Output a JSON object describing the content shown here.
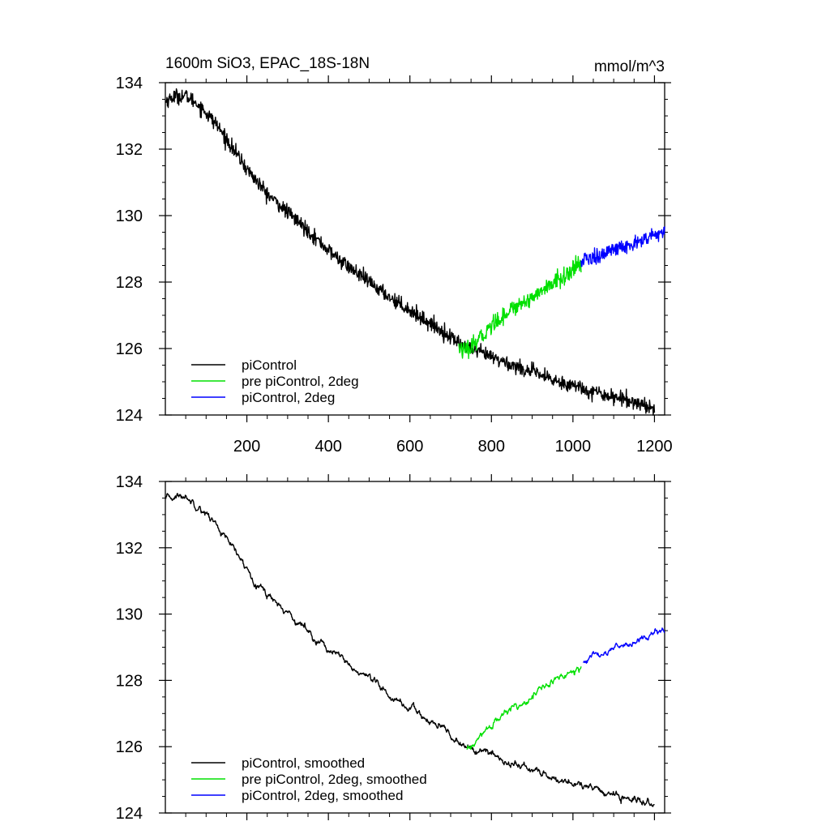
{
  "figure": {
    "title": "1600m SiO3, EPAC_18S-18N",
    "units": "mmol/m^3"
  },
  "chart_data": [
    {
      "type": "line",
      "title": "1600m SiO3, EPAC_18S-18N",
      "units_label": "mmol/m^3",
      "xlabel": "",
      "ylabel": "",
      "xlim": [
        0,
        1225
      ],
      "ylim": [
        124,
        134
      ],
      "x_ticks": [
        200,
        400,
        600,
        800,
        1000,
        1200
      ],
      "x_tick_labels": [
        "200",
        "400",
        "600",
        "800",
        "1000",
        "1200"
      ],
      "y_ticks": [
        124,
        126,
        128,
        130,
        132,
        134
      ],
      "y_tick_labels": [
        "124",
        "126",
        "128",
        "130",
        "132",
        "134"
      ],
      "grid": false,
      "legend_position": "bottom-left",
      "series": [
        {
          "name": "piControl",
          "color": "#000000",
          "noise": 0.11,
          "x": [
            1,
            25,
            50,
            75,
            100,
            125,
            150,
            175,
            200,
            250,
            300,
            350,
            400,
            450,
            500,
            550,
            600,
            650,
            700,
            735,
            800,
            850,
            900,
            950,
            1000,
            1050,
            1100,
            1150,
            1200
          ],
          "y": [
            133.45,
            133.6,
            133.6,
            133.4,
            133.1,
            132.75,
            132.3,
            131.85,
            131.4,
            130.65,
            130.1,
            129.55,
            128.95,
            128.45,
            128.0,
            127.55,
            127.15,
            126.75,
            126.35,
            126.05,
            125.75,
            125.5,
            125.3,
            125.05,
            124.9,
            124.7,
            124.55,
            124.4,
            124.2
          ]
        },
        {
          "name": "pre piControl, 2deg",
          "color": "#00e000",
          "noise": 0.13,
          "x": [
            720,
            735,
            750,
            775,
            800,
            850,
            900,
            950,
            1000,
            1020
          ],
          "y": [
            126.05,
            125.9,
            126.0,
            126.35,
            126.7,
            127.2,
            127.55,
            127.95,
            128.35,
            128.55
          ]
        },
        {
          "name": "piControl, 2deg",
          "color": "#0000ff",
          "noise": 0.12,
          "x": [
            1020,
            1050,
            1100,
            1150,
            1200,
            1225
          ],
          "y": [
            128.6,
            128.75,
            128.95,
            129.15,
            129.4,
            129.5
          ]
        }
      ]
    },
    {
      "type": "line",
      "title": "",
      "xlabel": "",
      "ylabel": "",
      "xlim": [
        0,
        1225
      ],
      "ylim": [
        124,
        134
      ],
      "x_ticks": [
        200,
        400,
        600,
        800,
        1000,
        1200
      ],
      "x_tick_labels": [],
      "y_ticks": [
        124,
        126,
        128,
        130,
        132,
        134
      ],
      "y_tick_labels": [
        "124",
        "126",
        "128",
        "130",
        "132",
        "134"
      ],
      "grid": false,
      "legend_position": "bottom-left",
      "series": [
        {
          "name": "piControl, smoothed",
          "color": "#000000",
          "noise": 0.035,
          "x": [
            1,
            25,
            50,
            75,
            100,
            125,
            150,
            175,
            200,
            250,
            300,
            350,
            400,
            450,
            500,
            550,
            600,
            650,
            700,
            735,
            800,
            850,
            900,
            950,
            1000,
            1050,
            1100,
            1150,
            1200
          ],
          "y": [
            133.45,
            133.55,
            133.55,
            133.35,
            133.05,
            132.7,
            132.25,
            131.8,
            131.35,
            130.6,
            130.05,
            129.5,
            128.95,
            128.45,
            128.0,
            127.55,
            127.15,
            126.75,
            126.35,
            126.0,
            125.75,
            125.5,
            125.3,
            125.05,
            124.9,
            124.7,
            124.55,
            124.4,
            124.2
          ]
        },
        {
          "name": "pre piControl, 2deg, smoothed",
          "color": "#00e000",
          "noise": 0.035,
          "x": [
            740,
            750,
            775,
            800,
            850,
            900,
            950,
            1000,
            1020
          ],
          "y": [
            125.9,
            125.95,
            126.3,
            126.65,
            127.15,
            127.55,
            127.95,
            128.3,
            128.5
          ]
        },
        {
          "name": "piControl, 2deg, smoothed",
          "color": "#0000ff",
          "noise": 0.03,
          "x": [
            1025,
            1050,
            1100,
            1150,
            1200,
            1225
          ],
          "y": [
            128.55,
            128.7,
            128.95,
            129.15,
            129.4,
            129.5
          ]
        }
      ]
    }
  ]
}
